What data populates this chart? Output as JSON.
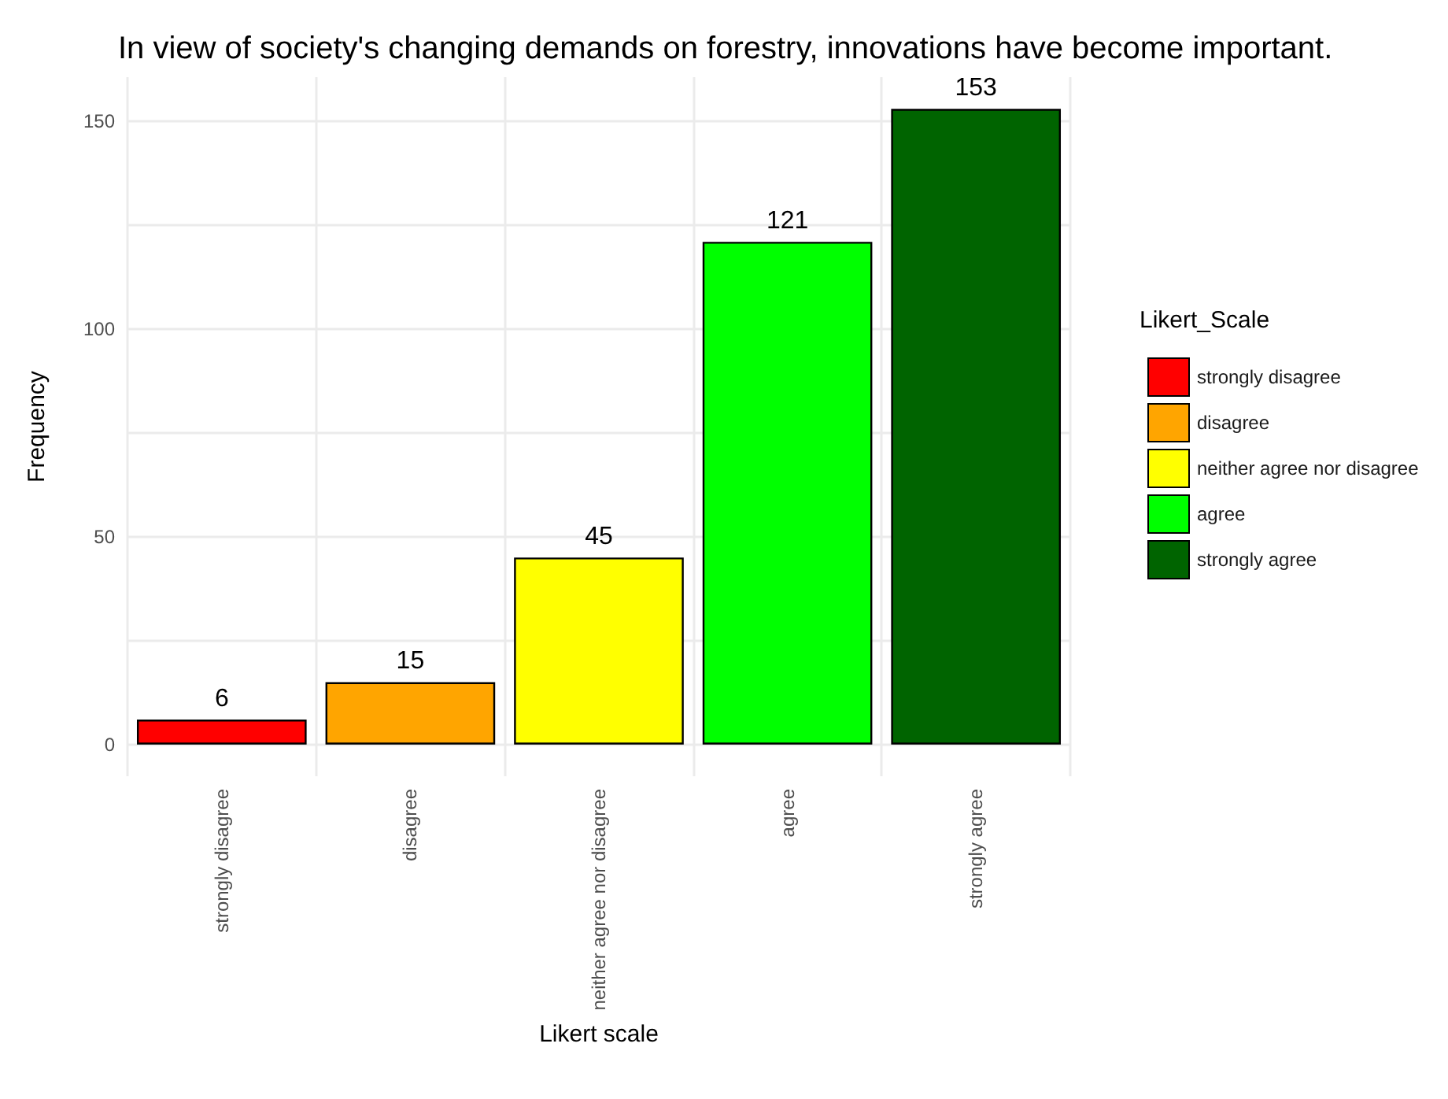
{
  "chart_data": {
    "type": "bar",
    "title": "In view of society's changing demands on forestry, innovations have become important.",
    "xlabel": "Likert scale",
    "ylabel": "Frequency",
    "legend_title": "Likert_Scale",
    "categories": [
      "strongly disagree",
      "disagree",
      "neither agree nor disagree",
      "agree",
      "strongly agree"
    ],
    "series": [
      {
        "name": "strongly disagree",
        "color": "#ff0000",
        "values": [
          6,
          null,
          null,
          null,
          null
        ]
      },
      {
        "name": "disagree",
        "color": "#ffa500",
        "values": [
          null,
          15,
          null,
          null,
          null
        ]
      },
      {
        "name": "neither agree nor disagree",
        "color": "#ffff00",
        "values": [
          null,
          null,
          45,
          null,
          null
        ]
      },
      {
        "name": "agree",
        "color": "#00ff00",
        "values": [
          null,
          null,
          null,
          121,
          null
        ]
      },
      {
        "name": "strongly agree",
        "color": "#006400",
        "values": [
          null,
          null,
          null,
          null,
          153
        ]
      }
    ],
    "ylim": [
      -7.65,
      160.65
    ],
    "yticks": [
      0,
      {
        "value": 25,
        "label": null
      },
      50,
      {
        "value": 75,
        "label": null
      },
      100,
      {
        "value": 125,
        "label": null
      },
      150
    ],
    "grid": true,
    "legend": "right",
    "data_labels": true
  }
}
